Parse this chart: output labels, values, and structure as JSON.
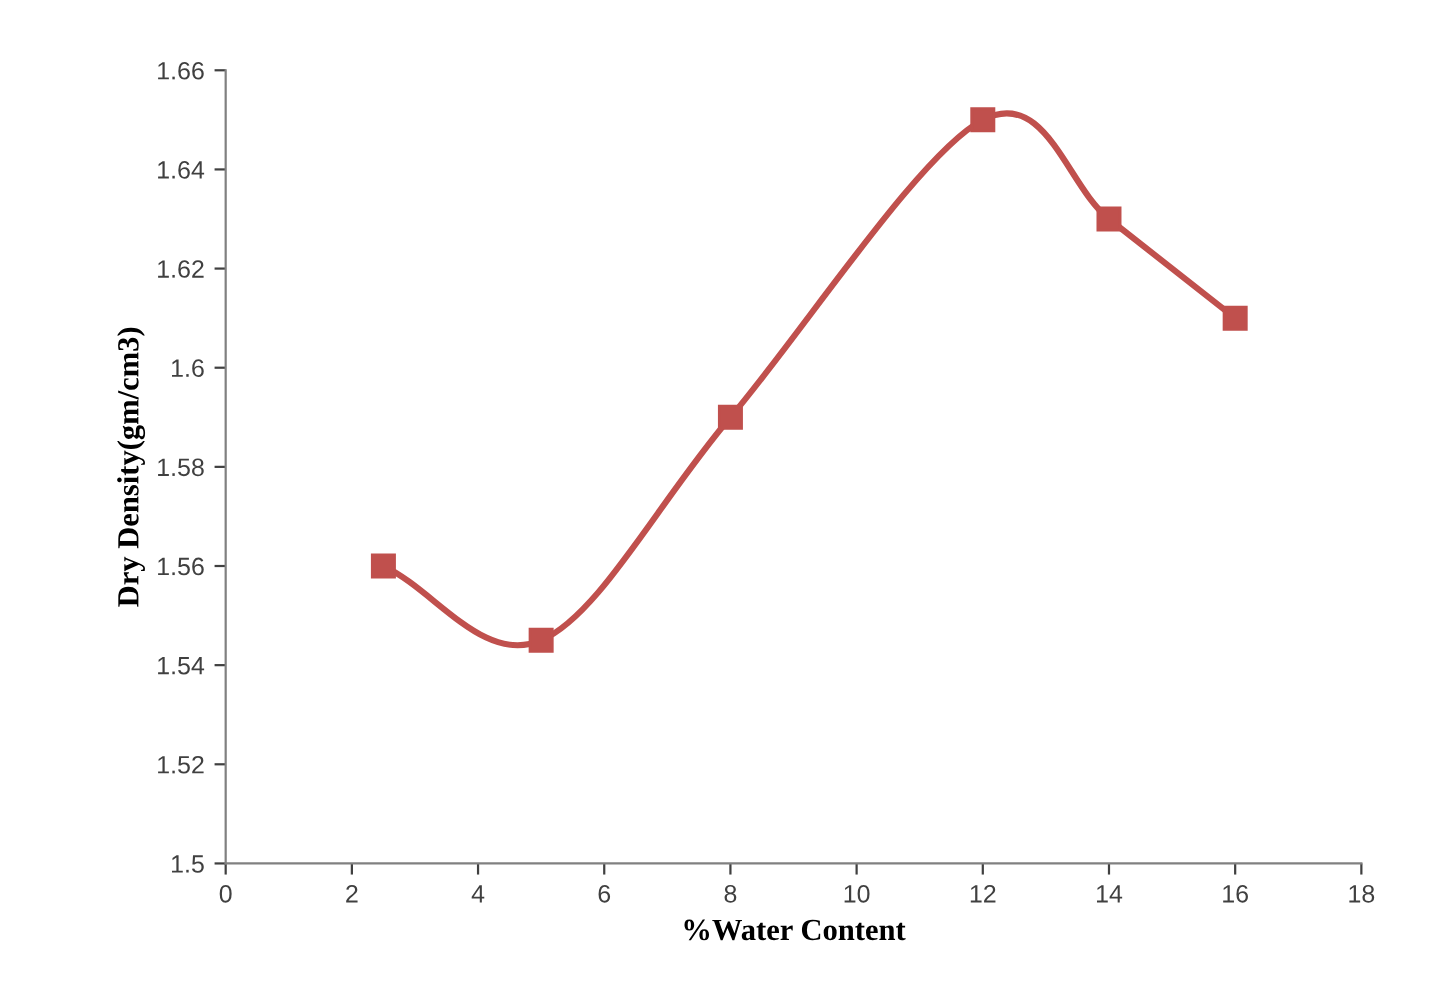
{
  "chart_data": {
    "type": "line",
    "xlabel": "%Water Content",
    "ylabel": "Dry Density(gm/cm3)",
    "x": [
      2.5,
      5,
      8,
      12,
      14,
      16
    ],
    "series": [
      {
        "color": "#c0504d",
        "values": [
          1.56,
          1.545,
          1.59,
          1.65,
          1.63,
          1.61
        ]
      }
    ],
    "xlim": [
      0,
      18
    ],
    "xticks": [
      0,
      2,
      4,
      6,
      8,
      10,
      12,
      14,
      16,
      18
    ],
    "ylim": [
      1.5,
      1.66
    ],
    "yticks": [
      {
        "value": 1.5,
        "label": "1.5"
      },
      1.52,
      1.54,
      1.56,
      1.58,
      {
        "value": 1.6,
        "label": "1.6"
      },
      1.62,
      1.64,
      1.66
    ],
    "marker": "square",
    "line_style": "solid",
    "grid": false,
    "legend": false
  }
}
